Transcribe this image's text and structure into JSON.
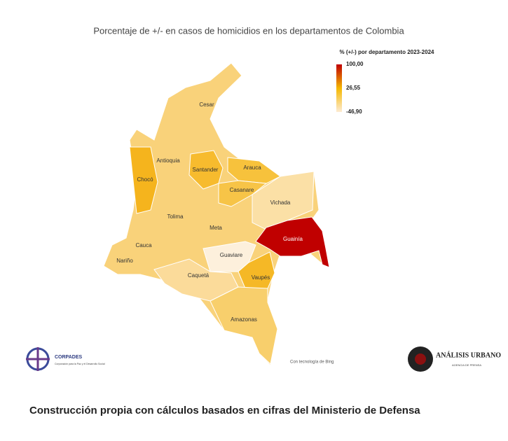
{
  "title": "Porcentaje de +/- en casos de homicidios en los departamentos de Colombia",
  "legend": {
    "title": "% (+/-) por departamento 2023-2024",
    "ticks": [
      {
        "value": 100,
        "label": "100,00"
      },
      {
        "value": 26.55,
        "label": "26,55"
      },
      {
        "value": -46.9,
        "label": "-46,90"
      }
    ],
    "colors": [
      "#c00000",
      "#f5b800",
      "#fdebd3"
    ]
  },
  "map_color": "#f9d27a",
  "regions": [
    {
      "label": "Cesar"
    },
    {
      "label": "Antioquia"
    },
    {
      "label": "Santander",
      "color": "#f7bb2e"
    },
    {
      "label": "Arauca",
      "color": "#f7c23c"
    },
    {
      "label": "Chocó",
      "color": "#f5b41d"
    },
    {
      "label": "Casanare",
      "color": "#f7c447"
    },
    {
      "label": "Vichada",
      "color": "#fbe0a6"
    },
    {
      "label": "Tolima"
    },
    {
      "label": "Meta"
    },
    {
      "label": "Guainía",
      "color": "#c00000"
    },
    {
      "label": "Cauca"
    },
    {
      "label": "Guaviare",
      "color": "#fdf0dc"
    },
    {
      "label": "Nariño"
    },
    {
      "label": "Caquetá",
      "color": "#fbdb9a"
    },
    {
      "label": "Vaupés",
      "color": "#f5b826"
    },
    {
      "label": "Amazonas",
      "color": "#f8cf6c"
    }
  ],
  "credit": "Con tecnología de Bing",
  "logos": {
    "left_name": "CORPADES",
    "left_sub": "Corporación para la Paz y el Desarrollo Social",
    "right_name": "ANÁLISIS URBANO",
    "right_sub": "AGENCIA DE PRENSA"
  },
  "caption": "Construcción propia con cálculos basados en cifras del Ministerio de Defensa"
}
